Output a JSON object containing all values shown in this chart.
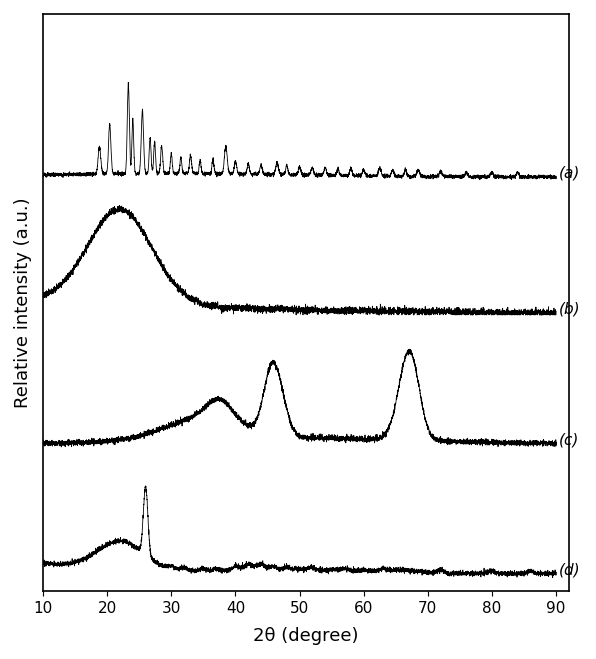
{
  "title": "",
  "xlabel": "2θ (degree)",
  "ylabel": "Relative intensity (a.u.)",
  "xlim": [
    10,
    90
  ],
  "xticks": [
    10,
    20,
    30,
    40,
    50,
    60,
    70,
    80,
    90
  ],
  "labels": [
    "(a)",
    "(b)",
    "(c)",
    "(d)"
  ],
  "line_color": "#000000",
  "background_color": "#ffffff",
  "figsize": [
    5.96,
    6.59
  ],
  "dpi": 100
}
